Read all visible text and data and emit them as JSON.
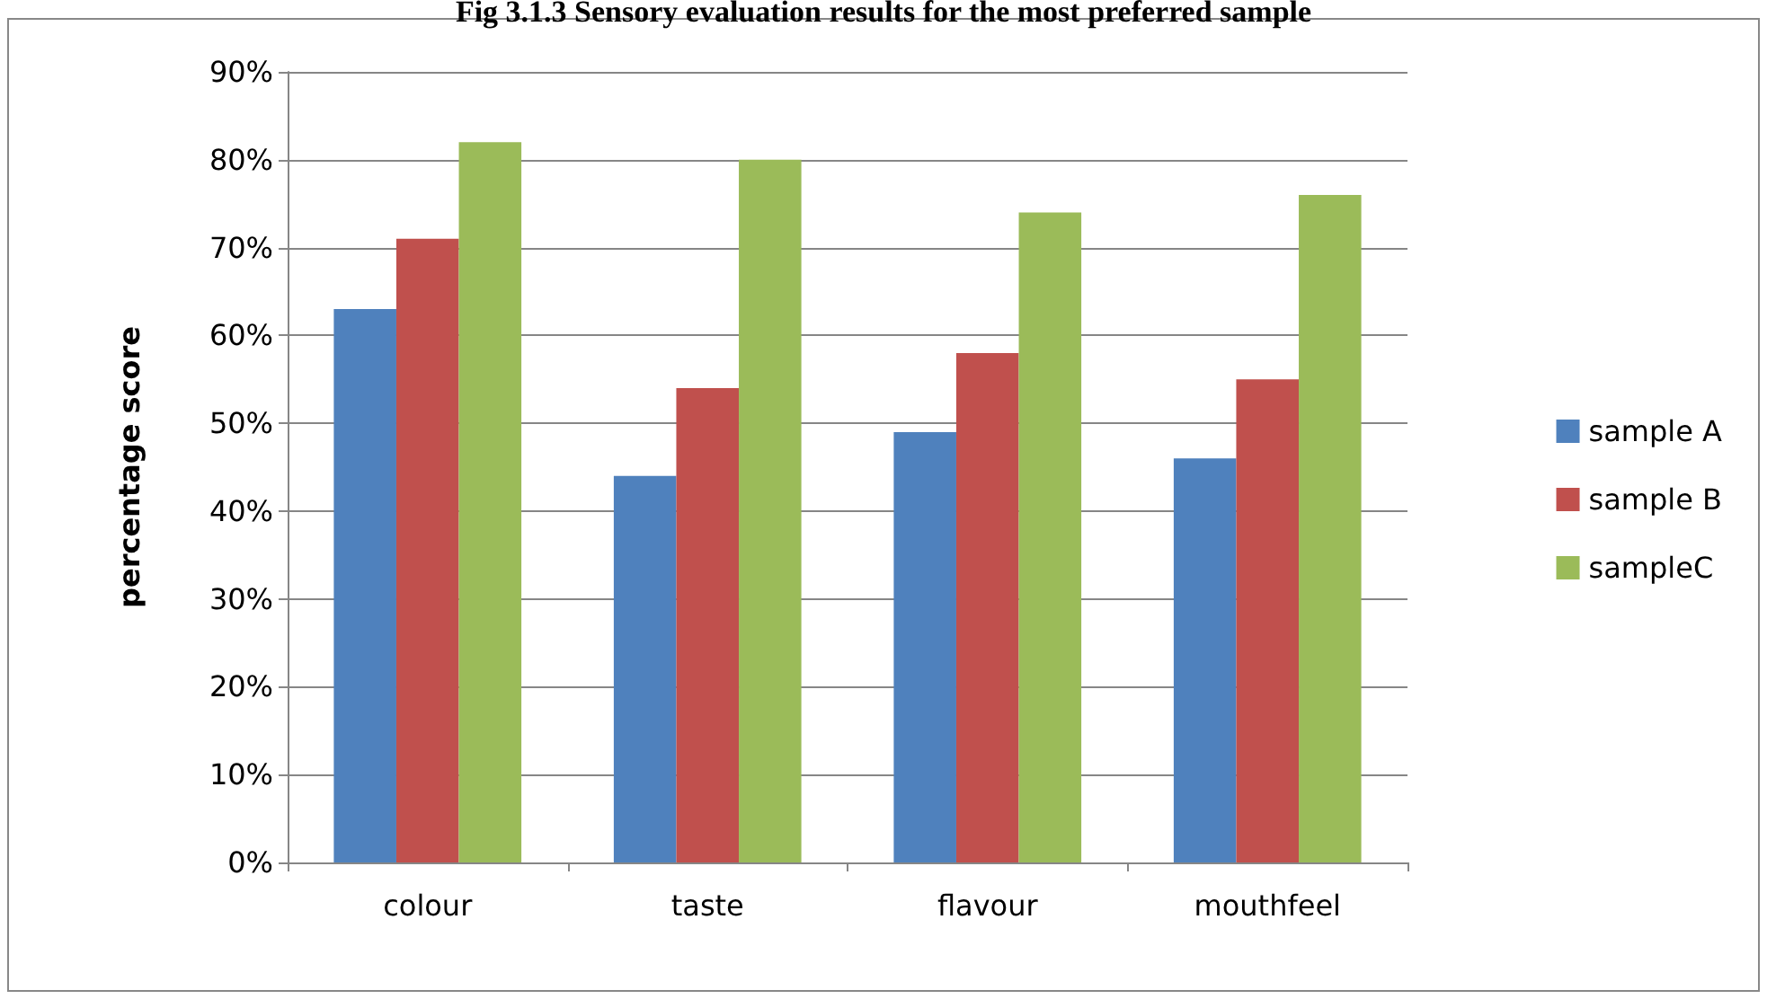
{
  "chart_data": {
    "type": "bar",
    "title": "Fig 3.1.3 Sensory evaluation results for the most preferred sample",
    "ylabel": "percentage score",
    "categories": [
      "colour",
      "taste",
      "flavour",
      "mouthfeel"
    ],
    "series": [
      {
        "name": "sample A",
        "color": "#4f81bd",
        "values": [
          63,
          44,
          49,
          46
        ]
      },
      {
        "name": "sample B",
        "color": "#c0504d",
        "values": [
          71,
          54,
          58,
          55
        ]
      },
      {
        "name": "sampleC",
        "color": "#9bbb59",
        "values": [
          82,
          80,
          74,
          76
        ]
      }
    ],
    "ylim": [
      0,
      90
    ],
    "yticks": [
      {
        "value": 0,
        "label": "0%"
      },
      {
        "value": 10,
        "label": "10%"
      },
      {
        "value": 20,
        "label": "20%"
      },
      {
        "value": 30,
        "label": "30%"
      },
      {
        "value": 40,
        "label": "40%"
      },
      {
        "value": 50,
        "label": "50%"
      },
      {
        "value": 60,
        "label": "60%"
      },
      {
        "value": 70,
        "label": "70%"
      },
      {
        "value": 80,
        "label": "80%"
      },
      {
        "value": 90,
        "label": "90%"
      }
    ],
    "grid": "y",
    "legend": "right"
  }
}
